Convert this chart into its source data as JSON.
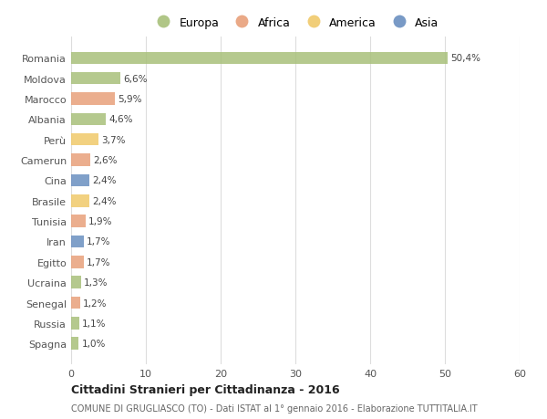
{
  "countries": [
    "Romania",
    "Moldova",
    "Marocco",
    "Albania",
    "Perù",
    "Camerun",
    "Cina",
    "Brasile",
    "Tunisia",
    "Iran",
    "Egitto",
    "Ucraina",
    "Senegal",
    "Russia",
    "Spagna"
  ],
  "values": [
    50.4,
    6.6,
    5.9,
    4.6,
    3.7,
    2.6,
    2.4,
    2.4,
    1.9,
    1.7,
    1.7,
    1.3,
    1.2,
    1.1,
    1.0
  ],
  "labels": [
    "50,4%",
    "6,6%",
    "5,9%",
    "4,6%",
    "3,7%",
    "2,6%",
    "2,4%",
    "2,4%",
    "1,9%",
    "1,7%",
    "1,7%",
    "1,3%",
    "1,2%",
    "1,1%",
    "1,0%"
  ],
  "continents": [
    "Europa",
    "Europa",
    "Africa",
    "Europa",
    "America",
    "Africa",
    "Asia",
    "America",
    "Africa",
    "Asia",
    "Africa",
    "Europa",
    "Africa",
    "Europa",
    "Europa"
  ],
  "colors": {
    "Europa": "#a8c07a",
    "Africa": "#e8a07a",
    "America": "#f0c96a",
    "Asia": "#6a8fc0"
  },
  "legend_order": [
    "Europa",
    "Africa",
    "America",
    "Asia"
  ],
  "title": "Cittadini Stranieri per Cittadinanza - 2016",
  "subtitle": "COMUNE DI GRUGLIASCO (TO) - Dati ISTAT al 1° gennaio 2016 - Elaborazione TUTTITALIA.IT",
  "xlim": [
    0,
    60
  ],
  "xticks": [
    0,
    10,
    20,
    30,
    40,
    50,
    60
  ],
  "background_color": "#ffffff",
  "grid_color": "#dddddd"
}
